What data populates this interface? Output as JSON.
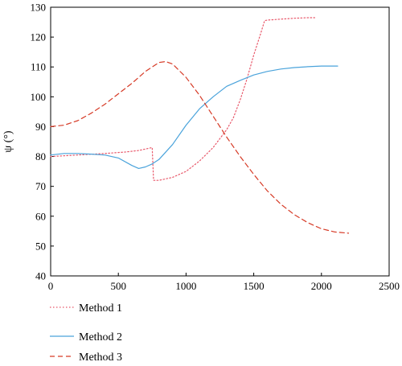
{
  "chart_data": {
    "type": "line",
    "title": "",
    "xlabel": "",
    "ylabel": "ψ (°)",
    "xlim": [
      0,
      2500
    ],
    "ylim": [
      40,
      130
    ],
    "xticks": [
      0,
      500,
      1000,
      1500,
      2000,
      2500
    ],
    "yticks": [
      40,
      50,
      60,
      70,
      80,
      90,
      100,
      110,
      120,
      130
    ],
    "grid": false,
    "legend_position": "below-left",
    "series": [
      {
        "name": "Method 1",
        "color": "#e8586a",
        "style": "dotted",
        "x": [
          0,
          200,
          400,
          550,
          650,
          750,
          760,
          800,
          900,
          1000,
          1100,
          1200,
          1300,
          1350,
          1400,
          1450,
          1500,
          1550,
          1580,
          1600,
          1700,
          1800,
          1900,
          1950
        ],
        "y": [
          80,
          80.5,
          81,
          81.5,
          82,
          83,
          72,
          72,
          73,
          75,
          78.5,
          83,
          89,
          93,
          99,
          106,
          114,
          121,
          125.5,
          125.7,
          126,
          126.3,
          126.5,
          126.5
        ]
      },
      {
        "name": "Method 2",
        "color": "#4aa3db",
        "style": "solid",
        "x": [
          0,
          100,
          200,
          300,
          400,
          500,
          600,
          650,
          700,
          750,
          800,
          900,
          1000,
          1100,
          1200,
          1300,
          1400,
          1500,
          1600,
          1700,
          1800,
          1900,
          2000,
          2100,
          2120
        ],
        "y": [
          80.5,
          81,
          81,
          80.8,
          80.5,
          79.5,
          77,
          76,
          76.5,
          77.5,
          79,
          84,
          90.5,
          96,
          100,
          103.5,
          105.5,
          107.3,
          108.5,
          109.3,
          109.8,
          110.1,
          110.3,
          110.3,
          110.3
        ],
        "xy_note": "values read from curve"
      },
      {
        "name": "Method 3",
        "color": "#d63a26",
        "style": "dashed",
        "x": [
          0,
          100,
          200,
          300,
          400,
          500,
          600,
          700,
          800,
          850,
          900,
          1000,
          1100,
          1200,
          1300,
          1400,
          1500,
          1600,
          1700,
          1800,
          1900,
          2000,
          2100,
          2200
        ],
        "y": [
          90,
          90.5,
          92,
          94.5,
          97.5,
          101,
          104.5,
          108.5,
          111.5,
          111.8,
          111,
          106.5,
          100.5,
          93.5,
          86.5,
          80,
          74,
          68.5,
          64,
          60.5,
          57.8,
          55.8,
          54.7,
          54.3
        ]
      }
    ]
  }
}
